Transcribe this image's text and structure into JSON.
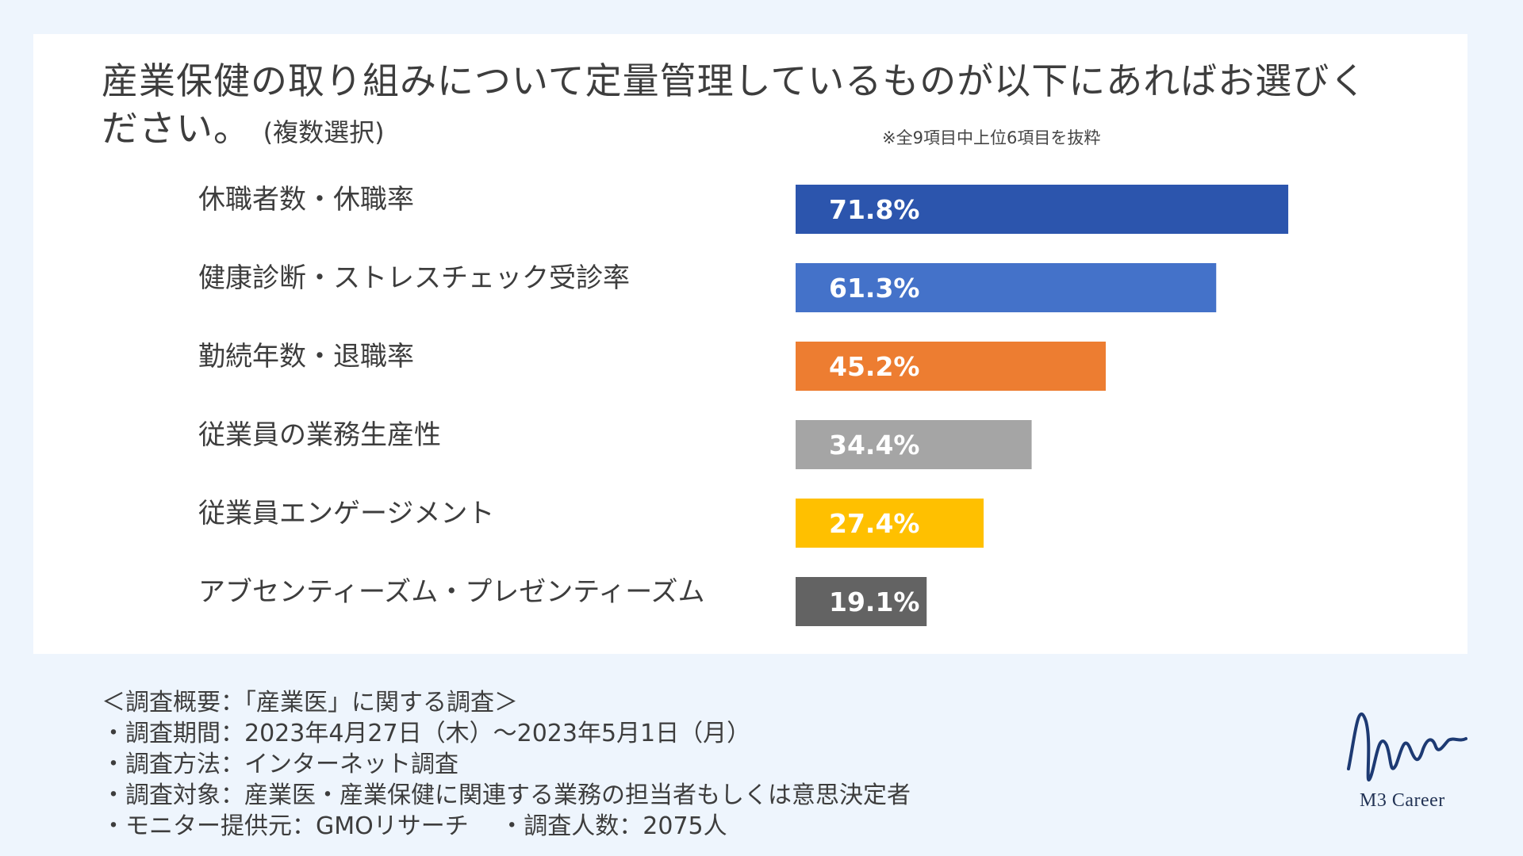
{
  "title": {
    "main": "産業保健の取り組みについて定量管理しているものが以下にあればお選びください。",
    "sub": "(複数選択)"
  },
  "note": "※全9項目中上位6項目を抜粋",
  "chart_data": {
    "type": "bar",
    "orientation": "horizontal",
    "categories": [
      "休職者数・休職率",
      "健康診断・ストレスチェック受診率",
      "勤続年数・退職率",
      "従業員の業務生産性",
      "従業員エンゲージメント",
      "アブセンティーズム・プレゼンティーズム"
    ],
    "values": [
      71.8,
      61.3,
      45.2,
      34.4,
      27.4,
      19.1
    ],
    "value_labels": [
      "71.8%",
      "61.3%",
      "45.2%",
      "34.4%",
      "27.4%",
      "19.1%"
    ],
    "colors": [
      "#2c55ad",
      "#4472c9",
      "#ed7d31",
      "#a5a5a5",
      "#ffc000",
      "#636363"
    ],
    "grid": false
  },
  "survey": {
    "heading": "＜調査概要：「産業医」に関する調査＞",
    "lines": [
      "・調査期間：2023年4月27日（木）〜2023年5月1日（月）",
      "・調査方法：インターネット調査",
      "・調査対象：産業医・産業保健に関連する業務の担当者もしくは意思決定者",
      "・モニター提供元：GMOリサーチ　 ・調査人数：2075人"
    ]
  },
  "logo": {
    "text": "M3 Career",
    "color": "#1d3a73"
  }
}
